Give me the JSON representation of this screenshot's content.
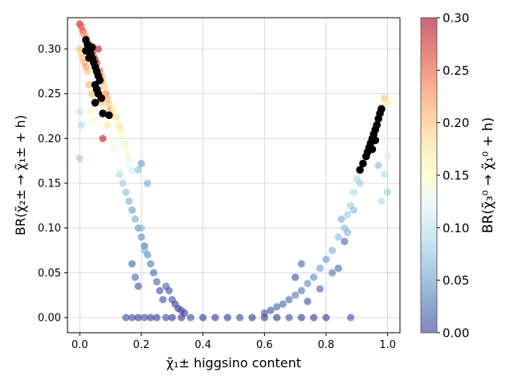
{
  "chart_data": {
    "type": "scatter",
    "xlabel": "χ̃₁± higgsino content",
    "ylabel": "BR(χ̃₂± → χ̃₁± + h)",
    "xlim": [
      -0.04,
      1.04
    ],
    "ylim": [
      -0.017,
      0.335
    ],
    "xticks": [
      "0.0",
      "0.2",
      "0.4",
      "0.6",
      "0.8",
      "1.0"
    ],
    "yticks": [
      "0.00",
      "0.05",
      "0.10",
      "0.15",
      "0.20",
      "0.25",
      "0.30"
    ],
    "grid": true,
    "colorbar": {
      "label": "BR(χ̃₃⁰ → χ̃₁⁰ + h)",
      "range": [
        0,
        0.3
      ],
      "ticks": [
        "0.00",
        "0.05",
        "0.10",
        "0.15",
        "0.20",
        "0.25",
        "0.30"
      ],
      "colormap": "RdYlBu_r"
    },
    "series": [
      {
        "marker": "colored",
        "points": [
          [
            0.0,
            0.328,
            0.28
          ],
          [
            0.005,
            0.325,
            0.25
          ],
          [
            0.01,
            0.32,
            0.26
          ],
          [
            0.015,
            0.316,
            0.22
          ],
          [
            0.02,
            0.312,
            0.24
          ],
          [
            0.0,
            0.3,
            0.2
          ],
          [
            0.005,
            0.295,
            0.19
          ],
          [
            0.01,
            0.29,
            0.2
          ],
          [
            0.015,
            0.285,
            0.21
          ],
          [
            0.02,
            0.28,
            0.22
          ],
          [
            0.025,
            0.275,
            0.2
          ],
          [
            0.03,
            0.305,
            0.25
          ],
          [
            0.035,
            0.3,
            0.27
          ],
          [
            0.04,
            0.296,
            0.28
          ],
          [
            0.045,
            0.292,
            0.26
          ],
          [
            0.05,
            0.288,
            0.29
          ],
          [
            0.055,
            0.284,
            0.27
          ],
          [
            0.06,
            0.3,
            0.29
          ],
          [
            0.065,
            0.276,
            0.24
          ],
          [
            0.07,
            0.27,
            0.22
          ],
          [
            0.075,
            0.264,
            0.2
          ],
          [
            0.08,
            0.258,
            0.19
          ],
          [
            0.085,
            0.25,
            0.23
          ],
          [
            0.09,
            0.244,
            0.21
          ],
          [
            0.095,
            0.238,
            0.2
          ],
          [
            0.1,
            0.232,
            0.22
          ],
          [
            0.105,
            0.226,
            0.19
          ],
          [
            0.11,
            0.236,
            0.16
          ],
          [
            0.115,
            0.23,
            0.15
          ],
          [
            0.12,
            0.224,
            0.17
          ],
          [
            0.125,
            0.218,
            0.16
          ],
          [
            0.13,
            0.212,
            0.18
          ],
          [
            0.135,
            0.206,
            0.15
          ],
          [
            0.14,
            0.2,
            0.14
          ],
          [
            0.145,
            0.194,
            0.13
          ],
          [
            0.15,
            0.188,
            0.15
          ],
          [
            0.155,
            0.182,
            0.14
          ],
          [
            0.16,
            0.176,
            0.12
          ],
          [
            0.165,
            0.17,
            0.13
          ],
          [
            0.17,
            0.164,
            0.11
          ],
          [
            0.06,
            0.255,
            0.22
          ],
          [
            0.07,
            0.24,
            0.2
          ],
          [
            0.08,
            0.228,
            0.18
          ],
          [
            0.09,
            0.215,
            0.17
          ],
          [
            0.075,
            0.2,
            0.29
          ],
          [
            0.03,
            0.26,
            0.21
          ],
          [
            0.04,
            0.25,
            0.2
          ],
          [
            0.05,
            0.24,
            0.22
          ],
          [
            0.035,
            0.23,
            0.16
          ],
          [
            0.045,
            0.22,
            0.15
          ],
          [
            0.0,
            0.23,
            0.1
          ],
          [
            0.005,
            0.215,
            0.09
          ],
          [
            0.0,
            0.178,
            0.08
          ],
          [
            0.1,
            0.2,
            0.14
          ],
          [
            0.11,
            0.19,
            0.13
          ],
          [
            0.13,
            0.16,
            0.09
          ],
          [
            0.14,
            0.15,
            0.08
          ],
          [
            0.15,
            0.14,
            0.07
          ],
          [
            0.16,
            0.13,
            0.06
          ],
          [
            0.17,
            0.12,
            0.05
          ],
          [
            0.18,
            0.11,
            0.06
          ],
          [
            0.19,
            0.1,
            0.05
          ],
          [
            0.2,
            0.09,
            0.04
          ],
          [
            0.21,
            0.08,
            0.03
          ],
          [
            0.22,
            0.07,
            0.04
          ],
          [
            0.23,
            0.06,
            0.03
          ],
          [
            0.24,
            0.05,
            0.02
          ],
          [
            0.25,
            0.04,
            0.02
          ],
          [
            0.26,
            0.03,
            0.01
          ],
          [
            0.27,
            0.02,
            0.01
          ],
          [
            0.17,
            0.06,
            0.02
          ],
          [
            0.18,
            0.045,
            0.02
          ],
          [
            0.19,
            0.035,
            0.01
          ],
          [
            0.2,
            0.1,
            0.07
          ],
          [
            0.21,
            0.075,
            0.06
          ],
          [
            0.28,
            0.035,
            0.02
          ],
          [
            0.29,
            0.03,
            0.01
          ],
          [
            0.3,
            0.02,
            0.01
          ],
          [
            0.31,
            0.015,
            0.0
          ],
          [
            0.32,
            0.01,
            0.0
          ],
          [
            0.33,
            0.008,
            0.01
          ],
          [
            0.34,
            0.005,
            0.0
          ],
          [
            0.22,
            0.15,
            0.06
          ],
          [
            0.19,
            0.165,
            0.07
          ],
          [
            0.2,
            0.172,
            0.05
          ],
          [
            0.15,
            0.0,
            0.01
          ],
          [
            0.17,
            0.0,
            0.01
          ],
          [
            0.19,
            0.0,
            0.0
          ],
          [
            0.21,
            0.0,
            0.01
          ],
          [
            0.23,
            0.0,
            0.0
          ],
          [
            0.25,
            0.0,
            0.0
          ],
          [
            0.28,
            0.0,
            0.01
          ],
          [
            0.3,
            0.0,
            0.0
          ],
          [
            0.33,
            0.0,
            0.0
          ],
          [
            0.36,
            0.0,
            0.01
          ],
          [
            0.4,
            0.0,
            0.0
          ],
          [
            0.44,
            0.0,
            0.0
          ],
          [
            0.48,
            0.0,
            0.0
          ],
          [
            0.52,
            0.0,
            0.01
          ],
          [
            0.56,
            0.0,
            0.0
          ],
          [
            0.6,
            0.0,
            0.0
          ],
          [
            0.64,
            0.0,
            0.0
          ],
          [
            0.68,
            0.0,
            0.01
          ],
          [
            0.72,
            0.0,
            0.0
          ],
          [
            0.76,
            0.0,
            0.0
          ],
          [
            0.8,
            0.0,
            0.0
          ],
          [
            0.88,
            0.0,
            0.01
          ],
          [
            0.6,
            0.005,
            0.01
          ],
          [
            0.62,
            0.008,
            0.01
          ],
          [
            0.64,
            0.012,
            0.02
          ],
          [
            0.66,
            0.015,
            0.02
          ],
          [
            0.68,
            0.02,
            0.02
          ],
          [
            0.7,
            0.025,
            0.03
          ],
          [
            0.72,
            0.03,
            0.03
          ],
          [
            0.74,
            0.038,
            0.04
          ],
          [
            0.76,
            0.045,
            0.04
          ],
          [
            0.78,
            0.055,
            0.05
          ],
          [
            0.8,
            0.065,
            0.05
          ],
          [
            0.82,
            0.075,
            0.06
          ],
          [
            0.84,
            0.09,
            0.07
          ],
          [
            0.86,
            0.1,
            0.07
          ],
          [
            0.87,
            0.115,
            0.08
          ],
          [
            0.88,
            0.125,
            0.08
          ],
          [
            0.89,
            0.14,
            0.09
          ],
          [
            0.9,
            0.155,
            0.09
          ],
          [
            0.91,
            0.165,
            0.1
          ],
          [
            0.92,
            0.175,
            0.11
          ],
          [
            0.93,
            0.185,
            0.12
          ],
          [
            0.94,
            0.195,
            0.13
          ],
          [
            0.95,
            0.205,
            0.14
          ],
          [
            0.96,
            0.215,
            0.16
          ],
          [
            0.97,
            0.225,
            0.18
          ],
          [
            0.98,
            0.235,
            0.19
          ],
          [
            0.99,
            0.245,
            0.2
          ],
          [
            1.0,
            0.24,
            0.17
          ],
          [
            0.99,
            0.2,
            0.12
          ],
          [
            1.0,
            0.18,
            0.11
          ],
          [
            0.99,
            0.16,
            0.09
          ],
          [
            1.0,
            0.14,
            0.08
          ],
          [
            0.98,
            0.13,
            0.09
          ],
          [
            0.97,
            0.17,
            0.07
          ],
          [
            0.86,
            0.085,
            0.02
          ],
          [
            0.7,
            0.045,
            0.01
          ],
          [
            0.72,
            0.06,
            0.02
          ],
          [
            0.74,
            0.018,
            0.01
          ],
          [
            0.78,
            0.032,
            0.02
          ],
          [
            0.82,
            0.05,
            0.03
          ],
          [
            0.84,
            0.055,
            0.02
          ],
          [
            0.85,
            0.11,
            0.06
          ],
          [
            0.87,
            0.095,
            0.06
          ],
          [
            0.89,
            0.12,
            0.07
          ],
          [
            0.91,
            0.15,
            0.08
          ]
        ]
      },
      {
        "marker": "black",
        "points": [
          [
            0.02,
            0.31
          ],
          [
            0.025,
            0.305
          ],
          [
            0.03,
            0.3
          ],
          [
            0.035,
            0.295
          ],
          [
            0.04,
            0.29
          ],
          [
            0.045,
            0.285
          ],
          [
            0.05,
            0.28
          ],
          [
            0.055,
            0.275
          ],
          [
            0.06,
            0.27
          ],
          [
            0.065,
            0.265
          ],
          [
            0.05,
            0.26
          ],
          [
            0.055,
            0.255
          ],
          [
            0.06,
            0.25
          ],
          [
            0.07,
            0.245
          ],
          [
            0.05,
            0.24
          ],
          [
            0.075,
            0.228
          ],
          [
            0.095,
            0.226
          ],
          [
            0.03,
            0.29
          ],
          [
            0.04,
            0.302
          ],
          [
            0.02,
            0.298
          ],
          [
            0.91,
            0.165
          ],
          [
            0.92,
            0.172
          ],
          [
            0.93,
            0.18
          ],
          [
            0.935,
            0.185
          ],
          [
            0.94,
            0.19
          ],
          [
            0.945,
            0.195
          ],
          [
            0.95,
            0.2
          ],
          [
            0.955,
            0.205
          ],
          [
            0.96,
            0.21
          ],
          [
            0.965,
            0.215
          ],
          [
            0.97,
            0.222
          ],
          [
            0.975,
            0.228
          ],
          [
            0.98,
            0.233
          ],
          [
            0.95,
            0.188
          ],
          [
            0.96,
            0.198
          ]
        ]
      }
    ]
  }
}
